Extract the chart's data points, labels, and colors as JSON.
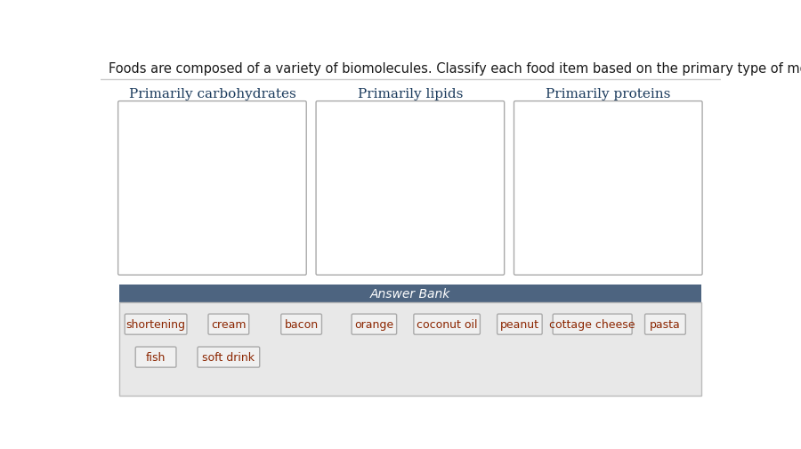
{
  "title": "Foods are composed of a variety of biomolecules. Classify each food item based on the primary type of molecule it contains.",
  "title_color": "#1a1a1a",
  "title_fontsize": 10.5,
  "categories": [
    "Primarily carbohydrates",
    "Primarily lipids",
    "Primarily proteins"
  ],
  "category_color": "#1a3a5c",
  "category_fontsize": 11,
  "box_edge_color": "#aaaaaa",
  "box_fill_color": "#ffffff",
  "answer_bank_label": "Answer Bank",
  "answer_bank_bg": "#4d6480",
  "answer_bank_fg": "#ffffff",
  "answer_bank_fontsize": 10,
  "answer_items_row1": [
    "shortening",
    "cream",
    "bacon",
    "orange",
    "coconut oil",
    "peanut",
    "cottage cheese",
    "pasta"
  ],
  "answer_items_row2": [
    "fish",
    "soft drink"
  ],
  "answer_item_color": "#8b2500",
  "answer_item_fontsize": 9,
  "answer_item_box_edge": "#aaaaaa",
  "answer_item_box_fill": "#f0f0f0",
  "answer_bank_area_bg": "#e8e8e8",
  "bg_color": "#ffffff",
  "separator_color": "#cccccc"
}
